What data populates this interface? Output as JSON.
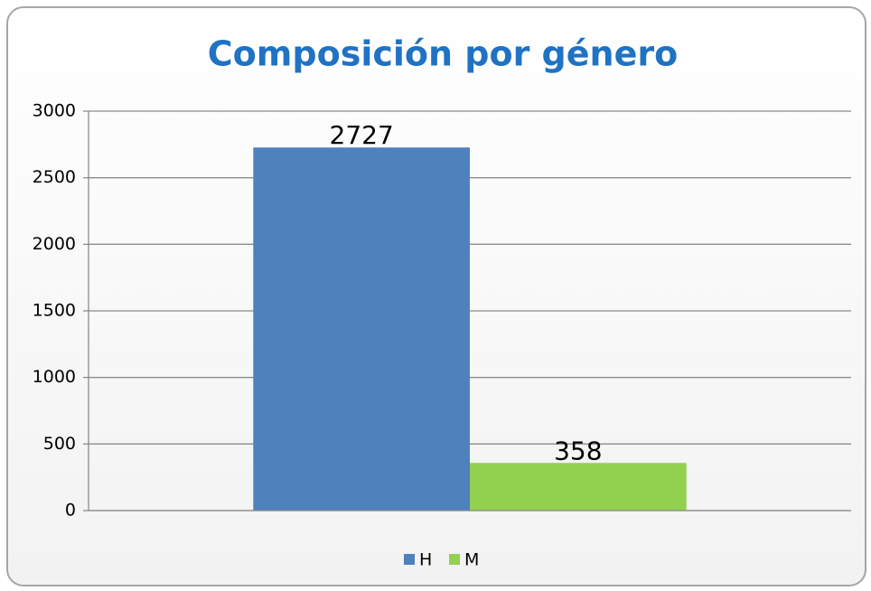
{
  "chart_data": {
    "type": "bar",
    "title": "Composición por género",
    "categories": [
      null
    ],
    "series": [
      {
        "name": "H",
        "color": "#4f81bd",
        "values": [
          2727
        ]
      },
      {
        "name": "M",
        "color": "#92d050",
        "values": [
          358
        ]
      }
    ],
    "ylim": [
      0,
      3000
    ],
    "yticks": [
      0,
      500,
      1000,
      1500,
      2000,
      2500,
      3000
    ],
    "grid": true,
    "legend": "bottom"
  }
}
